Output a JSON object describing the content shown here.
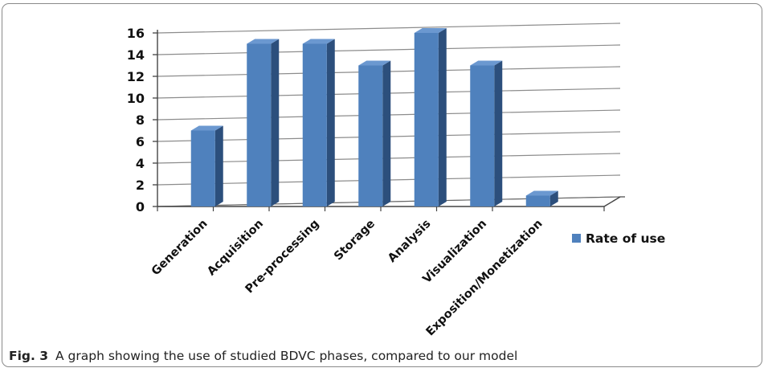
{
  "chart_data": {
    "type": "bar",
    "style": "3d-column",
    "categories": [
      "Generation",
      "Acquisition",
      "Pre-processing",
      "Storage",
      "Analysis",
      "Visualization",
      "Exposition/Monetization"
    ],
    "series": [
      {
        "name": "Rate of use",
        "values": [
          7,
          15,
          15,
          13,
          16,
          13,
          1
        ],
        "color": "#4f81bd"
      }
    ],
    "ylim": [
      0,
      16
    ],
    "yticks": [
      0,
      2,
      4,
      6,
      8,
      10,
      12,
      14,
      16
    ],
    "grid": true,
    "legend": "right",
    "colors": {
      "bar_front": "#4f81bd",
      "bar_side": "#2c4f7c",
      "bar_top": "#6b98d0",
      "grid": "#8c8c8c"
    }
  },
  "caption": {
    "label": "Fig. 3",
    "text": "A graph showing the use of studied BDVC phases, compared to our model"
  }
}
